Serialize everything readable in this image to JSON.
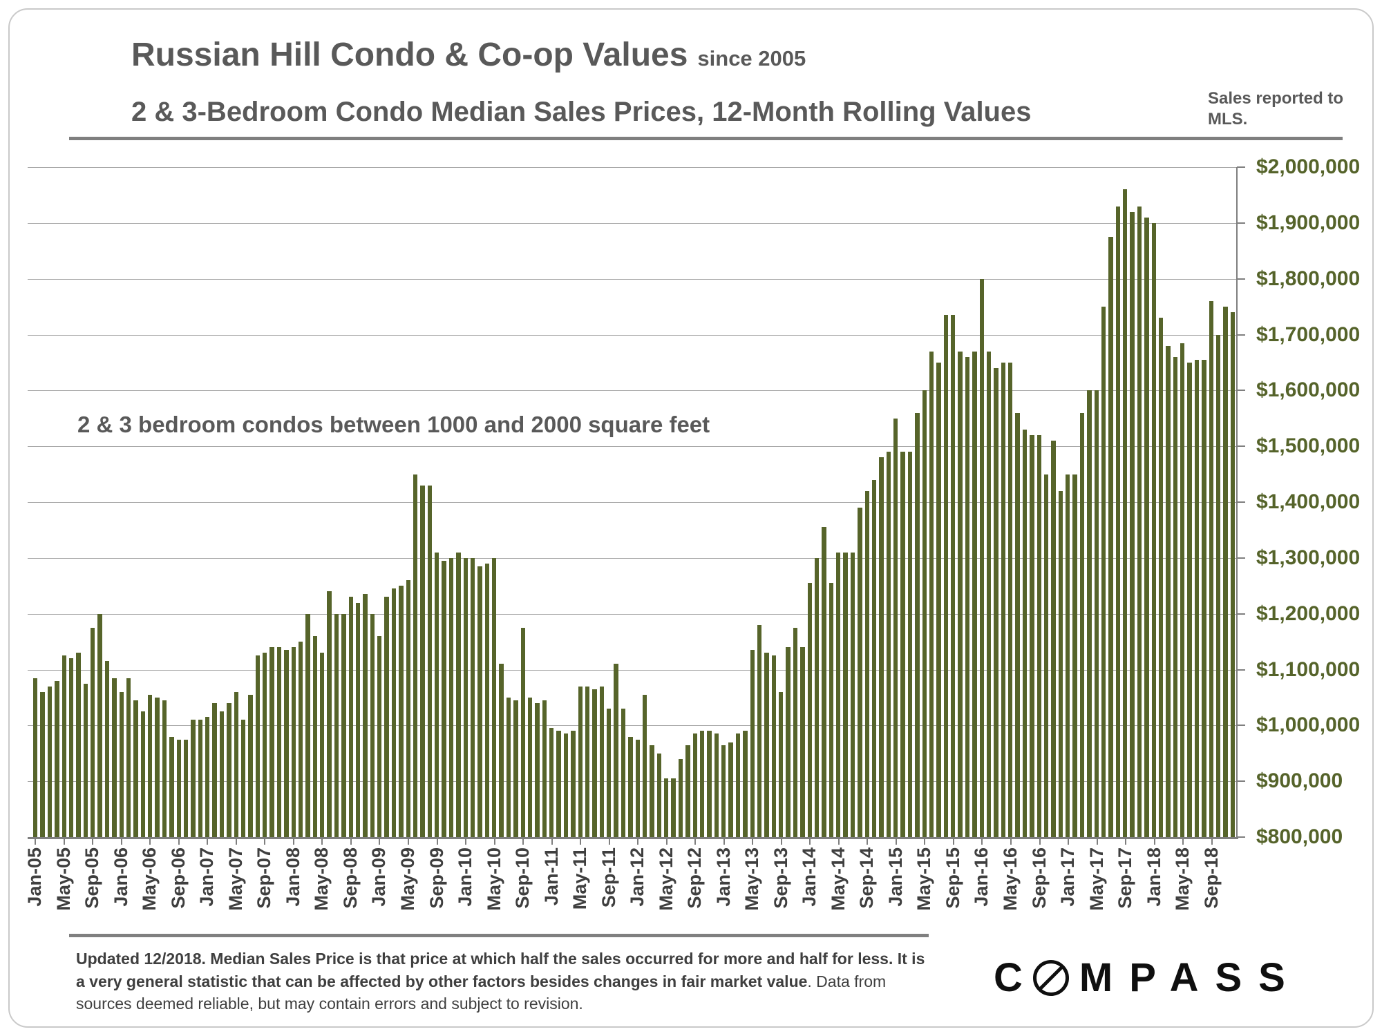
{
  "header": {
    "title": "Russian Hill Condo & Co-op Values",
    "title_suffix": "since 2005",
    "subtitle": "2 & 3-Bedroom Condo Median Sales Prices, 12-Month Rolling Values",
    "note": "Sales reported to MLS."
  },
  "annotation": "2 & 3 bedroom condos between 1000 and 2000 square feet",
  "footer": {
    "text_bold": "Updated 12/2018. Median Sales Price is that price at which half the sales occurred for more and half for less. It is a very general statistic that can be affected by other factors besides changes in fair market value",
    "text_normal": ". Data from sources deemed reliable, but may contain errors and subject to revision.",
    "logo_text": "COMPASS",
    "logo_prefix": "C",
    "logo_suffix": "MPASS"
  },
  "chart_data": {
    "type": "bar",
    "title": "Russian Hill Condo & Co-op Values since 2005",
    "subtitle": "2 & 3-Bedroom Condo Median Sales Prices, 12-Month Rolling Values",
    "ylim": [
      800000,
      2000000
    ],
    "bar_color": "#56642a",
    "grid": true,
    "legend": "none",
    "x_label_interval": 4,
    "y_ticks": [
      {
        "value": 2000000,
        "label": "$2,000,000"
      },
      {
        "value": 1900000,
        "label": "$1,900,000"
      },
      {
        "value": 1800000,
        "label": "$1,800,000"
      },
      {
        "value": 1700000,
        "label": "$1,700,000"
      },
      {
        "value": 1600000,
        "label": "$1,600,000"
      },
      {
        "value": 1500000,
        "label": "$1,500,000"
      },
      {
        "value": 1400000,
        "label": "$1,400,000"
      },
      {
        "value": 1300000,
        "label": "$1,300,000"
      },
      {
        "value": 1200000,
        "label": "$1,200,000"
      },
      {
        "value": 1100000,
        "label": "$1,100,000"
      },
      {
        "value": 1000000,
        "label": "$1,000,000"
      },
      {
        "value": 900000,
        "label": "$900,000"
      },
      {
        "value": 800000,
        "label": "$800,000"
      }
    ],
    "months": [
      "Jan-05",
      "Feb-05",
      "Mar-05",
      "Apr-05",
      "May-05",
      "Jun-05",
      "Jul-05",
      "Aug-05",
      "Sep-05",
      "Oct-05",
      "Nov-05",
      "Dec-05",
      "Jan-06",
      "Feb-06",
      "Mar-06",
      "Apr-06",
      "May-06",
      "Jun-06",
      "Jul-06",
      "Aug-06",
      "Sep-06",
      "Oct-06",
      "Nov-06",
      "Dec-06",
      "Jan-07",
      "Feb-07",
      "Mar-07",
      "Apr-07",
      "May-07",
      "Jun-07",
      "Jul-07",
      "Aug-07",
      "Sep-07",
      "Oct-07",
      "Nov-07",
      "Dec-07",
      "Jan-08",
      "Feb-08",
      "Mar-08",
      "Apr-08",
      "May-08",
      "Jun-08",
      "Jul-08",
      "Aug-08",
      "Sep-08",
      "Oct-08",
      "Nov-08",
      "Dec-08",
      "Jan-09",
      "Feb-09",
      "Mar-09",
      "Apr-09",
      "May-09",
      "Jun-09",
      "Jul-09",
      "Aug-09",
      "Sep-09",
      "Oct-09",
      "Nov-09",
      "Dec-09",
      "Jan-10",
      "Feb-10",
      "Mar-10",
      "Apr-10",
      "May-10",
      "Jun-10",
      "Jul-10",
      "Aug-10",
      "Sep-10",
      "Oct-10",
      "Nov-10",
      "Dec-10",
      "Jan-11",
      "Feb-11",
      "Mar-11",
      "Apr-11",
      "May-11",
      "Jun-11",
      "Jul-11",
      "Aug-11",
      "Sep-11",
      "Oct-11",
      "Nov-11",
      "Dec-11",
      "Jan-12",
      "Feb-12",
      "Mar-12",
      "Apr-12",
      "May-12",
      "Jun-12",
      "Jul-12",
      "Aug-12",
      "Sep-12",
      "Oct-12",
      "Nov-12",
      "Dec-12",
      "Jan-13",
      "Feb-13",
      "Mar-13",
      "Apr-13",
      "May-13",
      "Jun-13",
      "Jul-13",
      "Aug-13",
      "Sep-13",
      "Oct-13",
      "Nov-13",
      "Dec-13",
      "Jan-14",
      "Feb-14",
      "Mar-14",
      "Apr-14",
      "May-14",
      "Jun-14",
      "Jul-14",
      "Aug-14",
      "Sep-14",
      "Oct-14",
      "Nov-14",
      "Dec-14",
      "Jan-15",
      "Feb-15",
      "Mar-15",
      "Apr-15",
      "May-15",
      "Jun-15",
      "Jul-15",
      "Aug-15",
      "Sep-15",
      "Oct-15",
      "Nov-15",
      "Dec-15",
      "Jan-16",
      "Feb-16",
      "Mar-16",
      "Apr-16",
      "May-16",
      "Jun-16",
      "Jul-16",
      "Aug-16",
      "Sep-16",
      "Oct-16",
      "Nov-16",
      "Dec-16",
      "Jan-17",
      "Feb-17",
      "Mar-17",
      "Apr-17",
      "May-17",
      "Jun-17",
      "Jul-17",
      "Aug-17",
      "Sep-17",
      "Oct-17",
      "Nov-17",
      "Dec-17",
      "Jan-18",
      "Feb-18",
      "Mar-18",
      "Apr-18",
      "May-18",
      "Jun-18",
      "Jul-18",
      "Aug-18",
      "Sep-18",
      "Oct-18",
      "Nov-18",
      "Dec-18"
    ],
    "values": [
      1085000,
      1060000,
      1070000,
      1080000,
      1125000,
      1120000,
      1130000,
      1075000,
      1175000,
      1200000,
      1115000,
      1085000,
      1060000,
      1085000,
      1045000,
      1025000,
      1055000,
      1050000,
      1045000,
      980000,
      975000,
      975000,
      1010000,
      1010000,
      1015000,
      1040000,
      1025000,
      1040000,
      1060000,
      1010000,
      1055000,
      1125000,
      1130000,
      1140000,
      1140000,
      1135000,
      1140000,
      1150000,
      1200000,
      1160000,
      1130000,
      1240000,
      1200000,
      1200000,
      1230000,
      1220000,
      1235000,
      1200000,
      1160000,
      1230000,
      1245000,
      1250000,
      1260000,
      1450000,
      1430000,
      1430000,
      1310000,
      1295000,
      1300000,
      1310000,
      1300000,
      1300000,
      1285000,
      1290000,
      1300000,
      1110000,
      1050000,
      1045000,
      1175000,
      1050000,
      1040000,
      1045000,
      995000,
      990000,
      985000,
      990000,
      1070000,
      1070000,
      1065000,
      1070000,
      1030000,
      1110000,
      1030000,
      980000,
      975000,
      1055000,
      965000,
      950000,
      905000,
      905000,
      940000,
      965000,
      985000,
      990000,
      990000,
      985000,
      965000,
      970000,
      985000,
      990000,
      1135000,
      1180000,
      1130000,
      1125000,
      1060000,
      1140000,
      1175000,
      1140000,
      1255000,
      1300000,
      1355000,
      1255000,
      1310000,
      1310000,
      1310000,
      1390000,
      1420000,
      1440000,
      1480000,
      1490000,
      1550000,
      1490000,
      1490000,
      1560000,
      1600000,
      1670000,
      1650000,
      1735000,
      1735000,
      1670000,
      1660000,
      1670000,
      1800000,
      1670000,
      1640000,
      1650000,
      1650000,
      1560000,
      1530000,
      1520000,
      1520000,
      1450000,
      1510000,
      1420000,
      1450000,
      1450000,
      1560000,
      1600000,
      1600000,
      1750000,
      1875000,
      1930000,
      1960000,
      1920000,
      1930000,
      1910000,
      1900000,
      1730000,
      1680000,
      1660000,
      1685000,
      1650000,
      1655000,
      1655000,
      1760000,
      1700000,
      1750000,
      1740000
    ]
  }
}
